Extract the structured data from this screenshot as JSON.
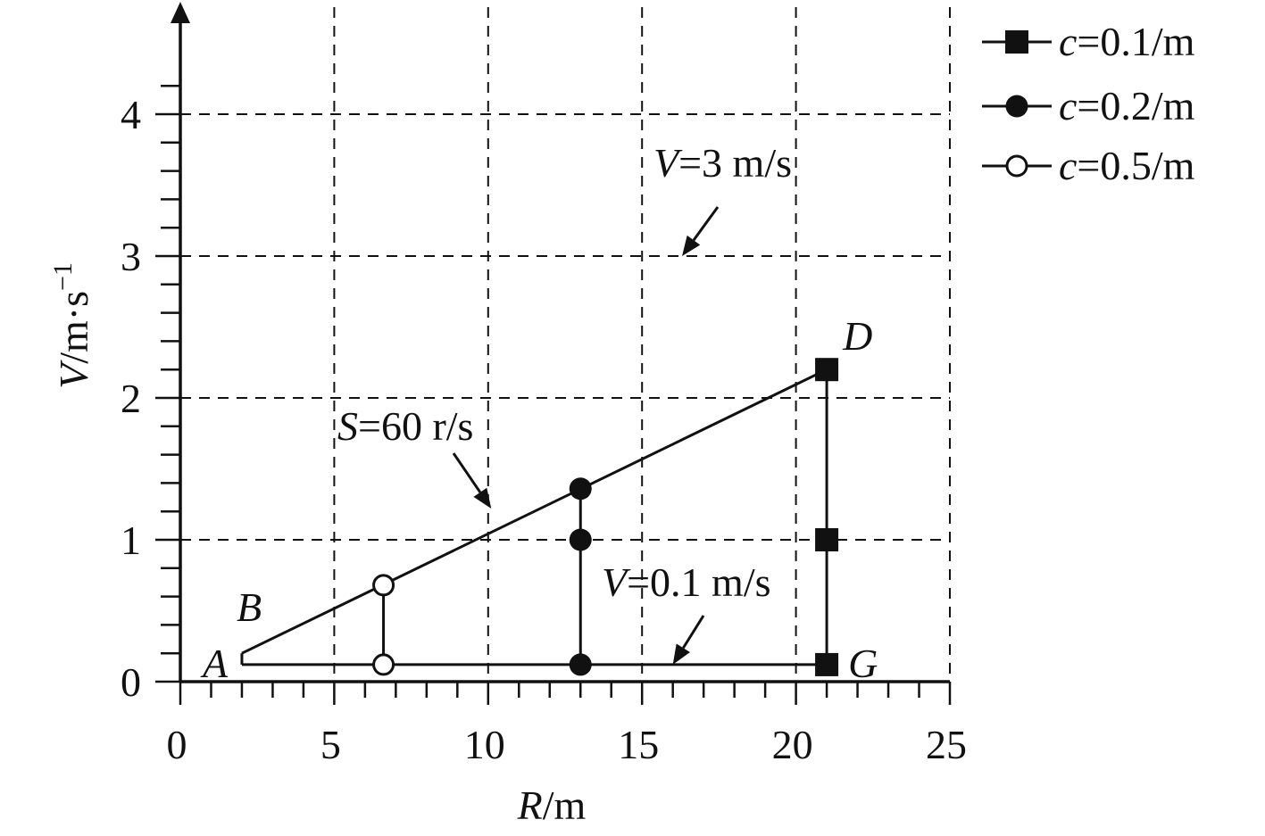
{
  "chart_data": {
    "type": "line",
    "title": "",
    "xlabel": {
      "var": "R",
      "unit": "/m"
    },
    "ylabel": {
      "var": "V",
      "unit": "/m·s",
      "exp": "−1"
    },
    "xlim": [
      0,
      25
    ],
    "ylim": [
      0,
      4.2
    ],
    "x_ticks": [
      "0",
      "5",
      "10",
      "15",
      "20",
      "25"
    ],
    "y_ticks": [
      "0",
      "1",
      "2",
      "3",
      "4"
    ],
    "grid": true,
    "legend": {
      "position": "top-right",
      "entries": [
        {
          "var": "c",
          "value": "=0.1/m",
          "marker": "square-filled"
        },
        {
          "var": "c",
          "value": "=0.2/m",
          "marker": "circle-filled"
        },
        {
          "var": "c",
          "value": "=0.5/m",
          "marker": "circle-open"
        }
      ]
    },
    "boundary": {
      "upper_line": [
        [
          2.0,
          0.2
        ],
        [
          21.0,
          2.2
        ]
      ],
      "lower_line": [
        [
          2.0,
          0.12
        ],
        [
          21.0,
          0.12
        ]
      ]
    },
    "series": [
      {
        "name": "c=0.1/m",
        "marker": "square-filled",
        "x": [
          21.0,
          21.0,
          21.0
        ],
        "y": [
          2.2,
          1.0,
          0.12
        ]
      },
      {
        "name": "c=0.2/m",
        "marker": "circle-filled",
        "x": [
          13.0,
          13.0,
          13.0
        ],
        "y": [
          1.36,
          1.0,
          0.12
        ]
      },
      {
        "name": "c=0.5/m",
        "marker": "circle-open",
        "x": [
          6.6,
          6.6
        ],
        "y": [
          0.68,
          0.12
        ]
      }
    ],
    "point_labels": [
      {
        "text": "A",
        "x": 2.0,
        "y": 0.12
      },
      {
        "text": "B",
        "x": 2.0,
        "y": 0.2
      },
      {
        "text": "D",
        "x": 21.0,
        "y": 2.2
      },
      {
        "text": "G",
        "x": 21.0,
        "y": 0.12
      }
    ],
    "annotations": [
      {
        "var": "V",
        "rest": "=3 m/s",
        "points_to": [
          16.3,
          3.0
        ]
      },
      {
        "var": "S",
        "rest": "=60 r/s",
        "points_to": [
          10.1,
          1.22
        ]
      },
      {
        "var": "V",
        "rest": "=0.1 m/s",
        "points_to": [
          16.0,
          0.12
        ]
      }
    ],
    "colors": {
      "ink": "#111111",
      "grid": "#111111",
      "background": "#ffffff"
    }
  }
}
